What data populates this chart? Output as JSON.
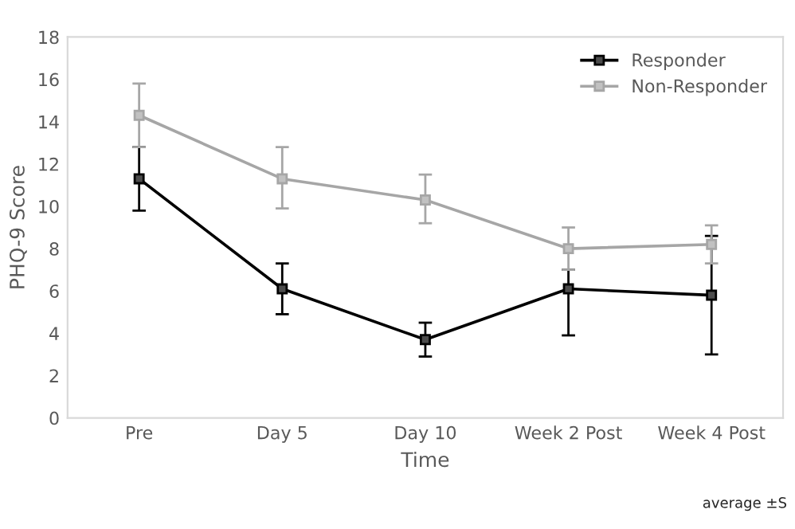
{
  "chart_data": {
    "type": "line",
    "xlabel": "Time",
    "ylabel": "PHQ-9 Score",
    "categories": [
      "Pre",
      "Day 5",
      "Day 10",
      "Week 2 Post",
      "Week 4 Post"
    ],
    "series": [
      {
        "name": "Responder",
        "color": "#000000",
        "values": [
          11.3,
          6.1,
          3.7,
          6.1,
          5.8
        ],
        "errors": [
          [
            9.8,
            12.8
          ],
          [
            4.9,
            7.3
          ],
          [
            2.9,
            4.5
          ],
          [
            3.9,
            7.0
          ],
          [
            3.0,
            8.6
          ]
        ]
      },
      {
        "name": "Non-Responder",
        "color": "#a6a6a6",
        "values": [
          14.3,
          11.3,
          10.3,
          8.0,
          8.2
        ],
        "errors": [
          [
            12.8,
            15.8
          ],
          [
            9.9,
            12.8
          ],
          [
            9.2,
            11.5
          ],
          [
            7.0,
            9.0
          ],
          [
            7.3,
            9.1
          ]
        ]
      }
    ],
    "ylim": [
      0,
      18
    ],
    "yticks": [
      0,
      2,
      4,
      6,
      8,
      10,
      12,
      14,
      16,
      18
    ],
    "grid": false,
    "legend": "top right",
    "marker": "square",
    "line_style": "solid",
    "annotations": [
      "average ±S"
    ]
  }
}
